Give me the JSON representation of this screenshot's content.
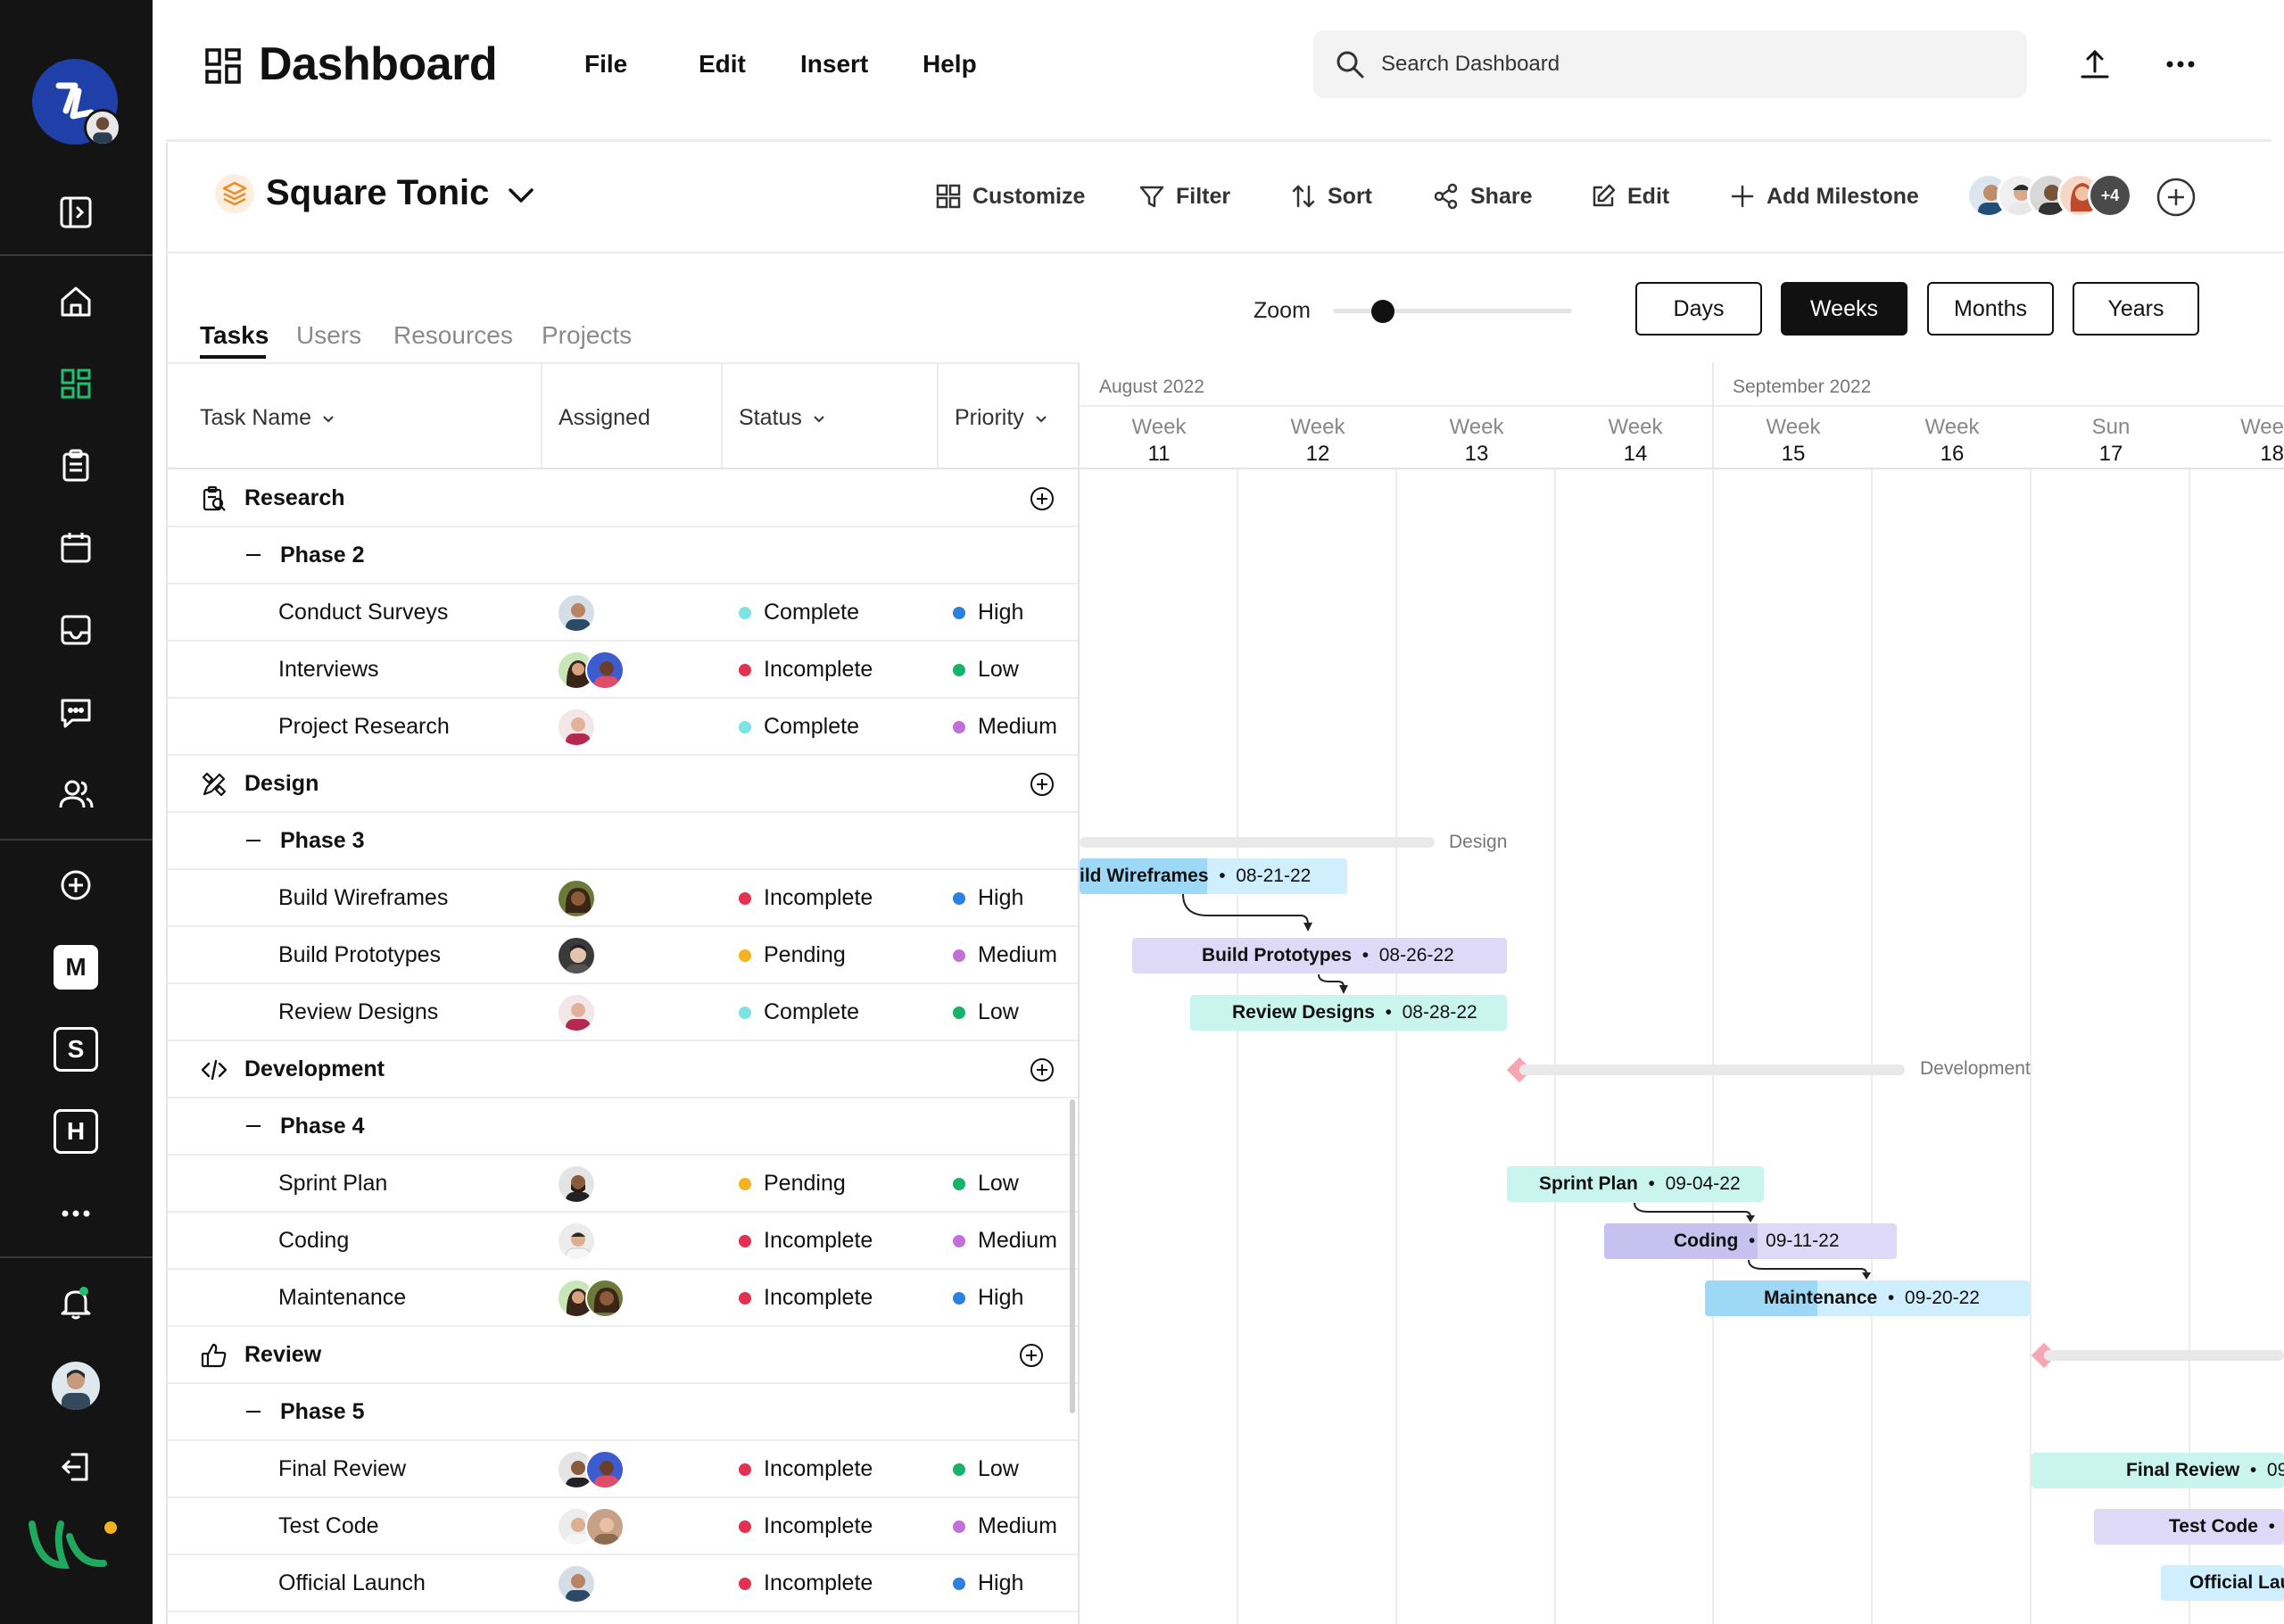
{
  "header": {
    "title": "Dashboard",
    "menu": [
      "File",
      "Edit",
      "Insert",
      "Help"
    ],
    "search_placeholder": "Search Dashboard"
  },
  "rail": {
    "letters": [
      "M",
      "S",
      "H"
    ]
  },
  "project": {
    "name": "Square Tonic",
    "toolbar": [
      "Customize",
      "Filter",
      "Sort",
      "Share",
      "Edit",
      "Add Milestone"
    ],
    "members_more": "+4"
  },
  "tabs": [
    {
      "label": "Tasks",
      "active": true
    },
    {
      "label": "Users",
      "active": false
    },
    {
      "label": "Resources",
      "active": false
    },
    {
      "label": "Projects",
      "active": false
    }
  ],
  "zoom": {
    "label": "Zoom",
    "level": 0.21
  },
  "timescale": {
    "options": [
      "Days",
      "Weeks",
      "Months",
      "Years"
    ],
    "selected": "Weeks"
  },
  "table": {
    "columns": [
      "Task Name",
      "Assigned",
      "Status",
      "Priority"
    ],
    "groups": [
      {
        "name": "Research",
        "phase": "Phase 2",
        "tasks": [
          {
            "name": "Conduct Surveys",
            "status": "Complete",
            "priority": "High"
          },
          {
            "name": "Interviews",
            "status": "Incomplete",
            "priority": "Low"
          },
          {
            "name": "Project Research",
            "status": "Complete",
            "priority": "Medium"
          }
        ]
      },
      {
        "name": "Design",
        "phase": "Phase 3",
        "tasks": [
          {
            "name": "Build Wireframes",
            "status": "Incomplete",
            "priority": "High"
          },
          {
            "name": "Build Prototypes",
            "status": "Pending",
            "priority": "Medium"
          },
          {
            "name": "Review Designs",
            "status": "Complete",
            "priority": "Low"
          }
        ]
      },
      {
        "name": "Development",
        "phase": "Phase 4",
        "tasks": [
          {
            "name": "Sprint Plan",
            "status": "Pending",
            "priority": "Low"
          },
          {
            "name": "Coding",
            "status": "Incomplete",
            "priority": "Medium"
          },
          {
            "name": "Maintenance",
            "status": "Incomplete",
            "priority": "High"
          }
        ]
      },
      {
        "name": "Review",
        "phase": "Phase 5",
        "tasks": [
          {
            "name": "Final Review",
            "status": "Incomplete",
            "priority": "Low"
          },
          {
            "name": "Test Code",
            "status": "Incomplete",
            "priority": "Medium"
          },
          {
            "name": "Official Launch",
            "status": "Incomplete",
            "priority": "High"
          }
        ]
      }
    ],
    "status_colors": {
      "Complete": "#7ee3e3",
      "Incomplete": "#e3314f",
      "Pending": "#f5b41f"
    },
    "priority_colors": {
      "High": "#2f7fe0",
      "Low": "#19b26b",
      "Medium": "#c46fd8"
    }
  },
  "gantt": {
    "months": [
      "August 2022",
      "September 2022"
    ],
    "weeks": [
      {
        "top": "Week",
        "num": "11"
      },
      {
        "top": "Week",
        "num": "12"
      },
      {
        "top": "Week",
        "num": "13"
      },
      {
        "top": "Week",
        "num": "14"
      },
      {
        "top": "Week",
        "num": "15"
      },
      {
        "top": "Week",
        "num": "16"
      },
      {
        "top": "Sun",
        "num": "17"
      },
      {
        "top": "Wee",
        "num": "18"
      }
    ],
    "group_labels": {
      "design": "Design",
      "development": "Development"
    },
    "bars": [
      {
        "task": "ild Wireframes",
        "date": "08-21-22"
      },
      {
        "task": "Build Prototypes",
        "date": "08-26-22"
      },
      {
        "task": "Review Designs",
        "date": "08-28-22"
      },
      {
        "task": "Sprint Plan",
        "date": "09-04-22"
      },
      {
        "task": "Coding",
        "date": "09-11-22"
      },
      {
        "task": "Maintenance",
        "date": "09-20-22"
      },
      {
        "task": "Final Review",
        "date": "09-"
      },
      {
        "task": "Test Code",
        "date": "0"
      },
      {
        "task": "Official Lau",
        "date": ""
      }
    ],
    "sep": "•"
  }
}
